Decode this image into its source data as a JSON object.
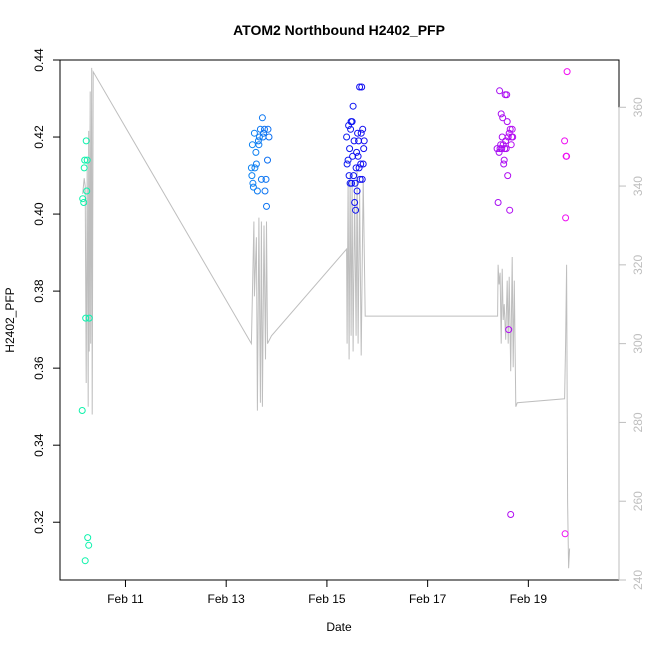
{
  "chart_data": {
    "type": "scatter",
    "title": "ATOM2 Northbound H2402_PFP",
    "xlabel": "Date",
    "ylabel": "H2402_PFP",
    "x_unit": "days since Feb 10 00:00",
    "xlim": [
      -0.3,
      10.8
    ],
    "ylim": [
      0.305,
      0.44
    ],
    "y2lim": [
      240,
      372
    ],
    "x_ticks": [
      {
        "value": 1,
        "label": "Feb 11"
      },
      {
        "value": 3,
        "label": "Feb 13"
      },
      {
        "value": 5,
        "label": "Feb 15"
      },
      {
        "value": 7,
        "label": "Feb 17"
      },
      {
        "value": 9,
        "label": "Feb 19"
      }
    ],
    "y_ticks": [
      {
        "value": 0.32,
        "label": "0.32"
      },
      {
        "value": 0.34,
        "label": "0.34"
      },
      {
        "value": 0.36,
        "label": "0.36"
      },
      {
        "value": 0.38,
        "label": "0.38"
      },
      {
        "value": 0.4,
        "label": "0.40"
      },
      {
        "value": 0.42,
        "label": "0.42"
      },
      {
        "value": 0.44,
        "label": "0.44"
      }
    ],
    "y2_ticks": [
      {
        "value": 240,
        "label": "240"
      },
      {
        "value": 260,
        "label": "260"
      },
      {
        "value": 280,
        "label": "280"
      },
      {
        "value": 300,
        "label": "300"
      },
      {
        "value": 320,
        "label": "320"
      },
      {
        "value": 340,
        "label": "340"
      },
      {
        "value": 360,
        "label": "360"
      }
    ],
    "series": [
      {
        "name": "points",
        "x": [
          0.14,
          0.15,
          0.17,
          0.18,
          0.19,
          0.2,
          0.21,
          0.22,
          0.23,
          0.24,
          0.25,
          0.27,
          0.28,
          3.5,
          3.51,
          3.52,
          3.53,
          3.54,
          3.56,
          3.57,
          3.59,
          3.6,
          3.62,
          3.64,
          3.65,
          3.66,
          3.68,
          3.7,
          3.72,
          3.73,
          3.74,
          3.76,
          3.77,
          3.79,
          3.8,
          3.82,
          3.83,
          3.85,
          5.39,
          5.4,
          5.42,
          5.43,
          5.44,
          5.45,
          5.46,
          5.47,
          5.48,
          5.49,
          5.5,
          5.51,
          5.52,
          5.53,
          5.54,
          5.55,
          5.56,
          5.57,
          5.58,
          5.59,
          5.6,
          5.61,
          5.62,
          5.63,
          5.64,
          5.65,
          5.66,
          5.67,
          5.68,
          5.69,
          5.7,
          5.71,
          5.72,
          5.73,
          5.74,
          8.38,
          8.4,
          8.42,
          8.43,
          8.44,
          8.45,
          8.46,
          8.47,
          8.48,
          8.49,
          8.5,
          8.51,
          8.52,
          8.53,
          8.54,
          8.55,
          8.56,
          8.57,
          8.58,
          8.59,
          8.6,
          8.61,
          8.62,
          8.63,
          8.64,
          8.65,
          8.66,
          8.67,
          8.68,
          8.69,
          9.72,
          9.73,
          9.74,
          9.75,
          9.76,
          9.77
        ],
        "y": [
          0.349,
          0.404,
          0.403,
          0.412,
          0.414,
          0.31,
          0.373,
          0.419,
          0.406,
          0.414,
          0.316,
          0.314,
          0.373,
          0.412,
          0.41,
          0.418,
          0.408,
          0.407,
          0.421,
          0.412,
          0.416,
          0.413,
          0.406,
          0.419,
          0.418,
          0.42,
          0.422,
          0.409,
          0.425,
          0.42,
          0.421,
          0.422,
          0.406,
          0.409,
          0.402,
          0.414,
          0.422,
          0.42,
          0.42,
          0.413,
          0.414,
          0.423,
          0.41,
          0.417,
          0.408,
          0.422,
          0.424,
          0.408,
          0.424,
          0.415,
          0.428,
          0.41,
          0.419,
          0.403,
          0.408,
          0.401,
          0.412,
          0.416,
          0.406,
          0.421,
          0.415,
          0.419,
          0.412,
          0.433,
          0.409,
          0.413,
          0.421,
          0.433,
          0.409,
          0.422,
          0.413,
          0.417,
          0.419,
          0.417,
          0.403,
          0.416,
          0.432,
          0.417,
          0.418,
          0.426,
          0.417,
          0.42,
          0.425,
          0.418,
          0.413,
          0.414,
          0.417,
          0.431,
          0.419,
          0.417,
          0.431,
          0.424,
          0.41,
          0.42,
          0.37,
          0.421,
          0.401,
          0.422,
          0.322,
          0.418,
          0.42,
          0.422,
          0.42,
          0.419,
          0.317,
          0.399,
          0.415,
          0.415,
          0.437
        ]
      },
      {
        "name": "line (right axis)",
        "axis": "right",
        "color": "#bebebe",
        "x": [
          0.15,
          0.18,
          0.2,
          0.22,
          0.24,
          0.26,
          0.27,
          0.28,
          0.3,
          0.31,
          0.33,
          0.34,
          0.36,
          3.5,
          3.55,
          3.56,
          3.6,
          3.62,
          3.65,
          3.68,
          3.7,
          3.72,
          3.75,
          3.78,
          3.8,
          3.82,
          3.9,
          5.39,
          5.4,
          5.42,
          5.44,
          5.46,
          5.48,
          5.5,
          5.52,
          5.55,
          5.58,
          5.6,
          5.62,
          5.65,
          5.68,
          5.72,
          5.76,
          8.39,
          8.4,
          8.42,
          8.44,
          8.46,
          8.48,
          8.5,
          8.52,
          8.55,
          8.58,
          8.6,
          8.62,
          8.65,
          8.68,
          8.7,
          8.72,
          8.75,
          8.78,
          9.72,
          9.74,
          9.76,
          9.78,
          9.8,
          9.82
        ],
        "y": [
          338,
          342,
          340,
          290,
          346,
          284,
          354,
          298,
          364,
          300,
          370,
          282,
          369,
          300,
          331,
          312,
          327,
          283,
          332,
          285,
          331,
          284,
          330,
          296,
          331,
          300,
          302,
          324,
          300,
          341,
          296,
          343,
          302,
          341,
          298,
          338,
          302,
          344,
          300,
          339,
          297,
          342,
          307,
          307,
          320,
          315,
          318,
          300,
          319,
          306,
          310,
          301,
          316,
          300,
          317,
          293,
          322,
          294,
          316,
          284,
          285,
          286,
          300,
          320,
          260,
          243,
          248
        ]
      }
    ]
  }
}
